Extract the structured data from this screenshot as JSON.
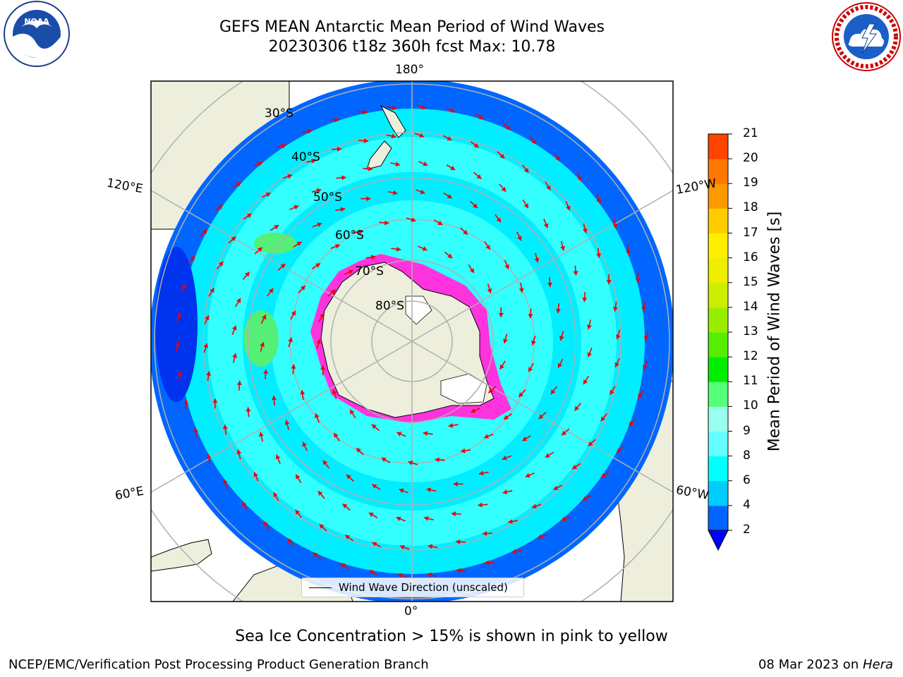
{
  "title": {
    "line1": "GEFS MEAN Antarctic Mean Period of Wind Waves",
    "line2": "20230306 t18z 360h fcst   Max: 10.78"
  },
  "longitude_labels": {
    "lon_180": "180°",
    "lon_0": "0°",
    "lon_120e": "120°E",
    "lon_120w": "120°W",
    "lon_60e": "60°E",
    "lon_60w": "60°W"
  },
  "latitude_labels": [
    "30°S",
    "40°S",
    "50°S",
    "60°S",
    "70°S",
    "80°S"
  ],
  "legend": {
    "label": "Wind Wave Direction (unscaled)"
  },
  "colorbar": {
    "label": "Mean Period of Wind Waves [s]",
    "ticks": [
      "2",
      "4",
      "6",
      "8",
      "9",
      "10",
      "11",
      "12",
      "13",
      "14",
      "15",
      "16",
      "17",
      "18",
      "19",
      "20",
      "21"
    ],
    "colors": [
      "#0066ff",
      "#00ccff",
      "#00ffff",
      "#66ffff",
      "#99ffee",
      "#55ff77",
      "#00ee00",
      "#55ee00",
      "#99ee00",
      "#ccee00",
      "#eeee00",
      "#ffee00",
      "#ffcc00",
      "#ff9900",
      "#ff7700",
      "#ff4400",
      "#ff1100",
      "#ff0000"
    ],
    "under_color": "#0000ff",
    "ocean_colors": {
      "low": "#0066ff",
      "mid": "#00eeff",
      "light": "#33ffff",
      "deep": "#0033ee"
    }
  },
  "land_color": "#eeeedd",
  "sea_ice_color": "#ff33dd",
  "arrow_color": "#ee0000",
  "note": "Sea Ice Concentration > 15% is shown in pink to yellow",
  "footer": {
    "left": "NCEP/EMC/Verification Post Processing Product Generation Branch",
    "right_date": "08 Mar 2023 on ",
    "right_machine": "Hera"
  },
  "logos": {
    "left": "NOAA",
    "right": "NATIONAL WEATHER SERVICE"
  }
}
